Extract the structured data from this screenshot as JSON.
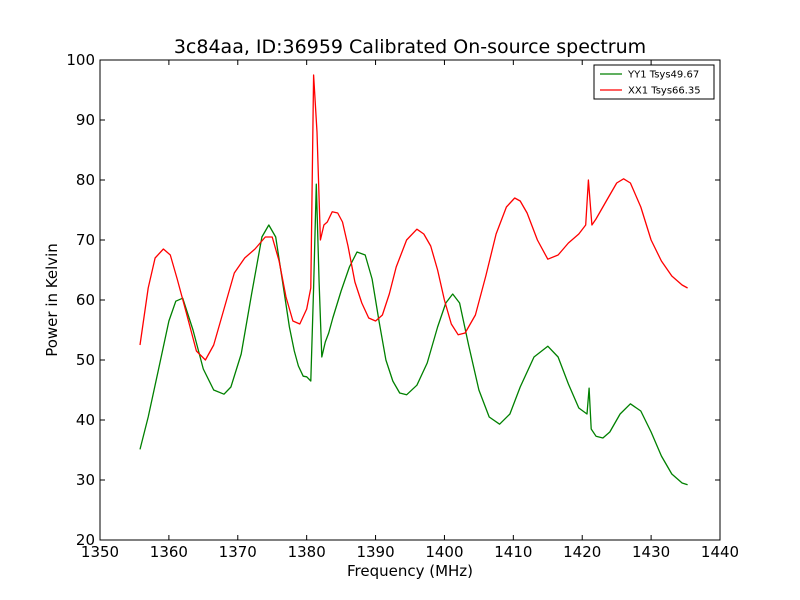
{
  "chart_data": {
    "type": "line",
    "title": "3c84aa, ID:36959 Calibrated On-source spectrum",
    "xlabel": "Frequency (MHz)",
    "ylabel": "Power in Kelvin",
    "xlim": [
      1350,
      1440
    ],
    "ylim": [
      20,
      100
    ],
    "xticks": [
      1350,
      1360,
      1370,
      1380,
      1390,
      1400,
      1410,
      1420,
      1430,
      1440
    ],
    "yticks": [
      20,
      30,
      40,
      50,
      60,
      70,
      80,
      90,
      100
    ],
    "grid": false,
    "legend_position": "top-right",
    "series": [
      {
        "name": "YY1 Tsys49.67",
        "color": "#008000",
        "x": [
          1355.8,
          1357.0,
          1358.5,
          1360.0,
          1361.0,
          1362.0,
          1363.5,
          1365.0,
          1366.5,
          1368.0,
          1369.0,
          1370.5,
          1372.0,
          1373.5,
          1374.5,
          1375.5,
          1376.5,
          1377.5,
          1378.2,
          1378.8,
          1379.5,
          1380.0,
          1380.6,
          1381.0,
          1381.4,
          1381.8,
          1382.2,
          1382.7,
          1383.2,
          1383.8,
          1385.0,
          1386.2,
          1387.3,
          1388.5,
          1389.5,
          1390.5,
          1391.5,
          1392.5,
          1393.5,
          1394.5,
          1396.0,
          1397.5,
          1399.0,
          1400.2,
          1401.2,
          1402.2,
          1403.5,
          1405.0,
          1406.5,
          1408.0,
          1409.5,
          1411.0,
          1413.0,
          1415.0,
          1416.5,
          1418.0,
          1419.5,
          1420.7,
          1421.0,
          1421.3,
          1422.0,
          1423.0,
          1424.0,
          1425.5,
          1427.0,
          1428.5,
          1430.0,
          1431.5,
          1433.0,
          1434.5,
          1435.3
        ],
        "y": [
          35.1,
          40.5,
          48.5,
          56.5,
          59.8,
          60.3,
          55.0,
          48.5,
          45.0,
          44.3,
          45.5,
          51.0,
          61.0,
          70.5,
          72.5,
          70.5,
          63.0,
          55.5,
          51.5,
          49.0,
          47.3,
          47.2,
          46.5,
          62.0,
          79.3,
          63.0,
          50.5,
          53.0,
          54.5,
          57.0,
          61.5,
          65.5,
          68.0,
          67.5,
          63.5,
          56.5,
          50.0,
          46.5,
          44.5,
          44.2,
          45.8,
          49.5,
          55.5,
          59.5,
          61.0,
          59.5,
          52.5,
          45.0,
          40.5,
          39.3,
          41.0,
          45.5,
          50.5,
          52.3,
          50.5,
          46.0,
          42.0,
          41.0,
          45.3,
          38.5,
          37.3,
          37.0,
          38.0,
          41.0,
          42.7,
          41.5,
          38.0,
          34.0,
          31.0,
          29.5,
          29.2
        ]
      },
      {
        "name": "XX1 Tsys66.35",
        "color": "#ff0000",
        "x": [
          1355.8,
          1357.0,
          1358.0,
          1359.2,
          1360.2,
          1361.2,
          1362.5,
          1364.0,
          1365.3,
          1366.5,
          1368.0,
          1369.5,
          1371.0,
          1372.5,
          1374.0,
          1375.0,
          1376.0,
          1377.0,
          1378.0,
          1379.0,
          1380.0,
          1380.6,
          1381.0,
          1381.5,
          1382.0,
          1382.5,
          1383.0,
          1383.7,
          1384.5,
          1385.2,
          1386.0,
          1387.0,
          1388.0,
          1389.0,
          1390.0,
          1391.0,
          1392.0,
          1393.0,
          1394.5,
          1396.0,
          1397.0,
          1398.0,
          1399.0,
          1400.0,
          1401.0,
          1402.0,
          1403.0,
          1404.5,
          1406.0,
          1407.5,
          1409.0,
          1410.2,
          1411.0,
          1412.0,
          1413.5,
          1415.0,
          1416.5,
          1418.0,
          1419.5,
          1420.5,
          1420.9,
          1421.4,
          1422.0,
          1423.5,
          1425.0,
          1426.0,
          1427.0,
          1428.5,
          1430.0,
          1431.5,
          1433.0,
          1434.5,
          1435.3
        ],
        "y": [
          52.5,
          62.0,
          67.0,
          68.5,
          67.5,
          63.5,
          58.0,
          51.5,
          50.0,
          52.5,
          58.5,
          64.5,
          67.0,
          68.5,
          70.5,
          70.5,
          66.5,
          60.5,
          56.5,
          56.0,
          58.5,
          62.0,
          97.5,
          88.0,
          70.0,
          72.5,
          73.0,
          74.7,
          74.5,
          73.0,
          69.0,
          63.0,
          59.5,
          57.0,
          56.5,
          57.5,
          61.0,
          65.5,
          70.0,
          71.8,
          71.0,
          69.0,
          65.0,
          60.0,
          56.0,
          54.2,
          54.5,
          57.5,
          64.0,
          71.0,
          75.5,
          77.0,
          76.5,
          74.5,
          70.0,
          66.8,
          67.5,
          69.5,
          71.0,
          72.5,
          80.0,
          72.5,
          73.5,
          76.5,
          79.5,
          80.2,
          79.5,
          75.5,
          70.0,
          66.5,
          64.0,
          62.5,
          62.0
        ]
      }
    ]
  }
}
